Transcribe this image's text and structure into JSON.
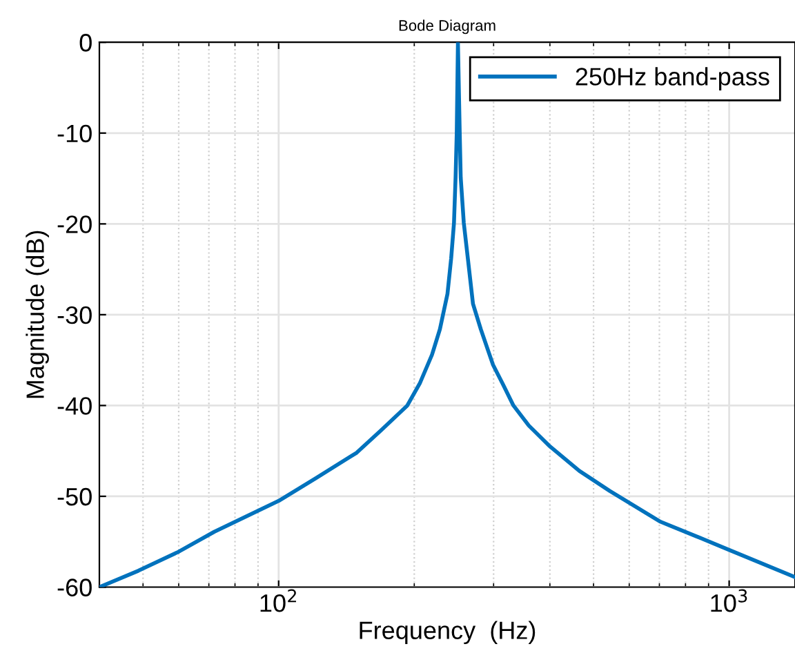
{
  "chart_data": {
    "type": "line",
    "title": "Bode Diagram",
    "xlabel": "Frequency  (Hz)",
    "ylabel": "Magnitude (dB)",
    "log": "x",
    "xlim": [
      40,
      1400
    ],
    "ylim": [
      -60,
      0
    ],
    "xticks": [
      {
        "value": 100,
        "label": "10$^{2}$"
      },
      {
        "value": 1000,
        "label": "10$^{3}$"
      }
    ],
    "yticks": [
      -60,
      -50,
      -40,
      -30,
      -20,
      -10,
      0
    ],
    "grid": true,
    "legend": "top right",
    "marker": "none",
    "line_style": "solid",
    "series": [
      {
        "name": "250Hz band-pass",
        "color": "#0072bd",
        "x": [
          40,
          48.8,
          60,
          72,
          100,
          121,
          149,
          169,
          193,
          206,
          219,
          228,
          237,
          241.5,
          245,
          247,
          248.5,
          250,
          252.3,
          253.6,
          257.6,
          263,
          270,
          281,
          299,
          315,
          332,
          359,
          398,
          465,
          543,
          704,
          845,
          1000,
          1400
        ],
        "values": [
          -60,
          -58.2,
          -56.1,
          -53.9,
          -50.5,
          -48,
          -45.2,
          -42.7,
          -40,
          -37.5,
          -34.4,
          -31.6,
          -27.7,
          -23.8,
          -19.9,
          -14.9,
          -9.9,
          0,
          -9.9,
          -14.9,
          -19.9,
          -23.8,
          -28.8,
          -31.6,
          -35.5,
          -37.7,
          -40,
          -42.2,
          -44.4,
          -47.2,
          -49.4,
          -52.8,
          -54.4,
          -55.9,
          -58.9
        ]
      }
    ]
  }
}
